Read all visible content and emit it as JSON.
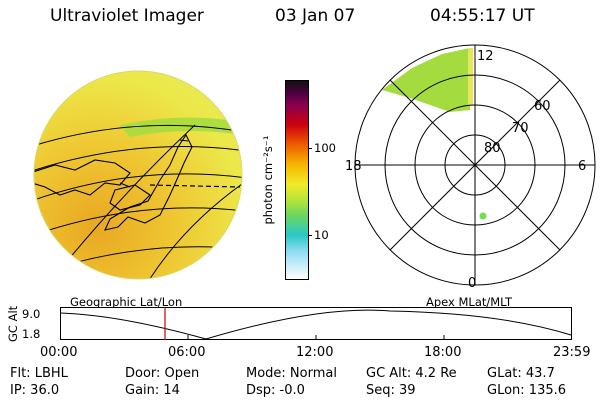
{
  "header": {
    "instrument": "Ultraviolet Imager",
    "date": "03 Jan 07",
    "time": "04:55:17 UT"
  },
  "colorbar": {
    "unit_label": "photon cm⁻²s⁻¹",
    "ticks": [
      "100",
      "10"
    ]
  },
  "polar": {
    "mlt_labels": {
      "top": "12",
      "left": "18",
      "right": "6",
      "bottom": "0"
    },
    "lat_labels": [
      "60",
      "70",
      "80"
    ]
  },
  "map_labels": {
    "left": "Geographic Lat/Lon",
    "right": "Apex MLat/MLT"
  },
  "altitude_plot": {
    "ylabel": "GC Alt",
    "yticks": [
      "9.0",
      "1.8"
    ],
    "xticks": [
      "00:00",
      "06:00",
      "12:00",
      "18:00",
      "23:59"
    ]
  },
  "status": {
    "row1": {
      "flt": "Flt: LBHL",
      "door": "Door: Open",
      "mode": "Mode: Normal",
      "gcalt": "GC Alt: 4.2 Re",
      "glat": "GLat:  43.7"
    },
    "row2": {
      "ip": "IP: 36.0",
      "gain": "Gain: 14",
      "dsp": "Dsp:   -0.0",
      "seq": "Seq: 39",
      "glon": "GLon: 135.6"
    }
  },
  "colors": {
    "disk": "#ece84a",
    "disk_dark": "#e9b526",
    "aurora": "#9cd93e",
    "cursor": "#d00000"
  }
}
